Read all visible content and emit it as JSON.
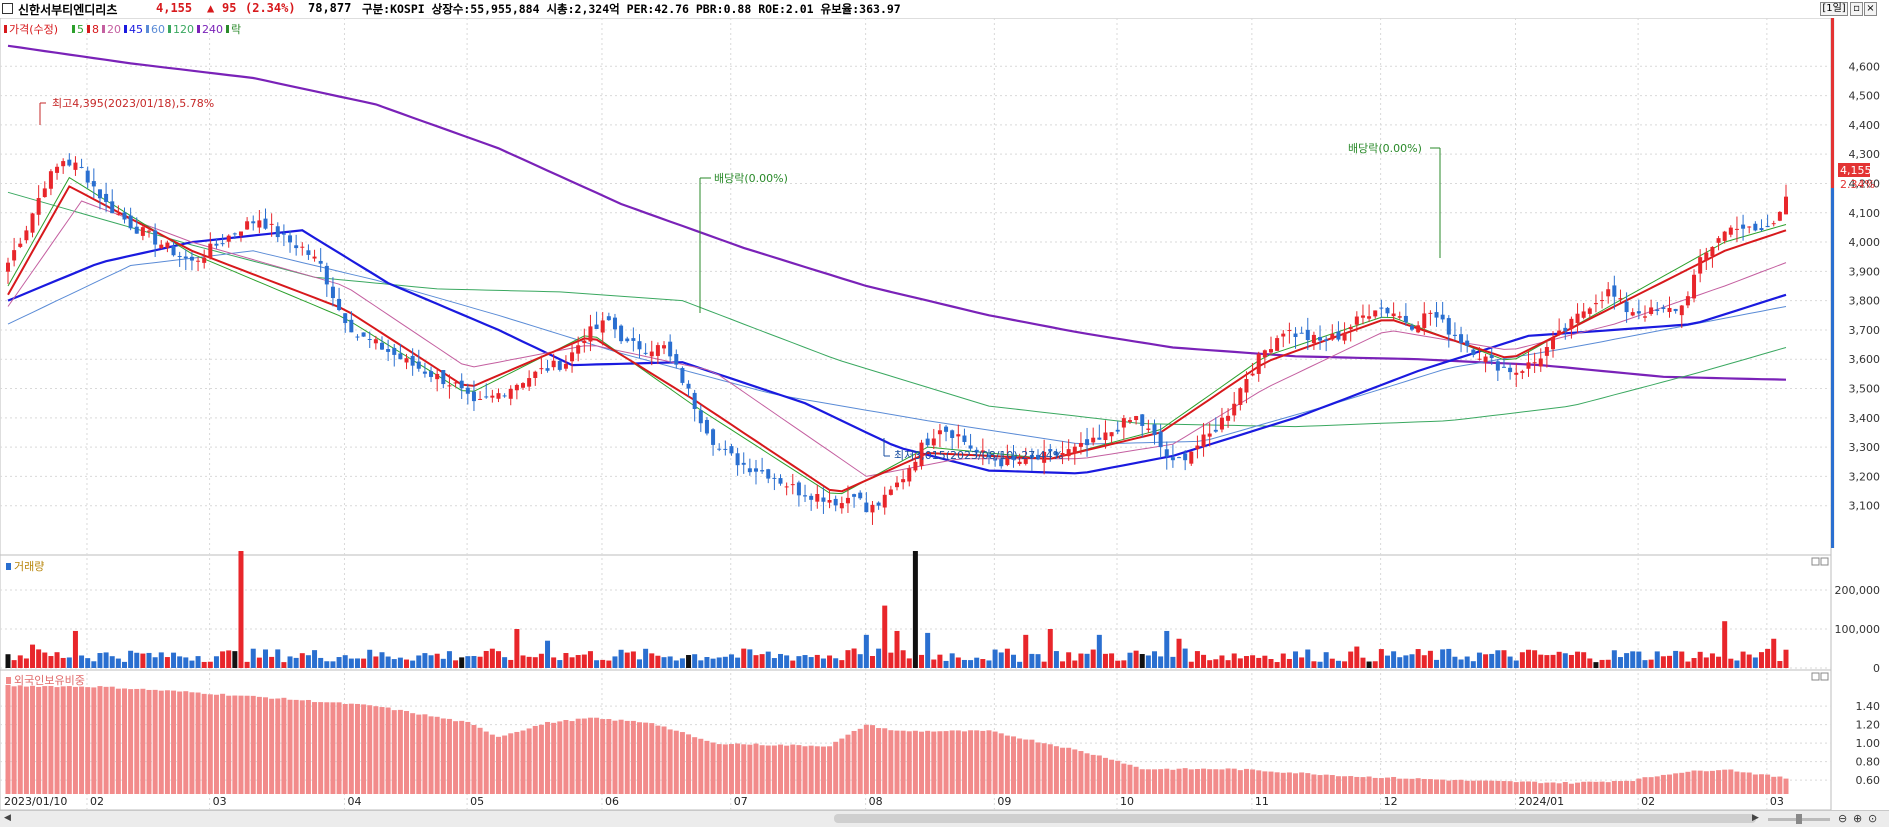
{
  "header": {
    "name": "신한서부티엔디리츠",
    "price": "4,155",
    "change_arrow": "▲",
    "change": "95",
    "change_pct": "(2.34%)",
    "volume": "78,877",
    "info": "구분:KOSPI 상장수:55,955,884 시총:2,324억 PER:42.76 PBR:0.88 ROE:2.01 유보율:363.97",
    "period_button": "[1일]"
  },
  "legend": {
    "items": [
      {
        "label": "가격(수정)",
        "color": "#d7191c"
      },
      {
        "label": "5",
        "color": "#2ca02c"
      },
      {
        "label": "8",
        "color": "#d7191c"
      },
      {
        "label": "20",
        "color": "#c45fa0"
      },
      {
        "label": "45",
        "color": "#1a1adf"
      },
      {
        "label": "60",
        "color": "#5a8bd6"
      },
      {
        "label": "120",
        "color": "#3aa860"
      },
      {
        "label": "240",
        "color": "#7a22b8"
      },
      {
        "label": "락",
        "color": "#2a8a2a"
      }
    ]
  },
  "annotations": {
    "high": "최고4,395(2023/01/18),5.78%",
    "low": "최저3,015(2023/08/10),27.44%",
    "dividend1": "배당락(0.00%)",
    "dividend2": "배당락(0.00%)"
  },
  "price_badge": {
    "price": "4,155",
    "pct": "2.34%"
  },
  "panel_titles": {
    "volume": "거래량",
    "foreign": "외국인보유비중"
  },
  "colors": {
    "up": "#e8262b",
    "down": "#2a6fd0",
    "grid": "#d9d9d9",
    "foreign_bar": "#f28b8b"
  },
  "chart_data": [
    {
      "type": "candlestick",
      "title": "가격(수정)",
      "y_ticks": [
        3100,
        3200,
        3300,
        3400,
        3500,
        3600,
        3700,
        3800,
        3900,
        4000,
        4100,
        4200,
        4300,
        4400,
        4500,
        4600
      ],
      "ylim": [
        3000,
        4700
      ],
      "x_tick_labels": [
        "2023/01/10",
        "02",
        "03",
        "04",
        "05",
        "06",
        "07",
        "08",
        "09",
        "10",
        "11",
        "12",
        "2024/01",
        "02",
        "03"
      ],
      "close_keypoints": [
        [
          0,
          3930
        ],
        [
          3,
          4050
        ],
        [
          6,
          4200
        ],
        [
          9,
          4280
        ],
        [
          12,
          4250
        ],
        [
          16,
          4130
        ],
        [
          20,
          4060
        ],
        [
          26,
          3980
        ],
        [
          30,
          3930
        ],
        [
          34,
          3990
        ],
        [
          38,
          4050
        ],
        [
          41,
          4080
        ],
        [
          45,
          4010
        ],
        [
          48,
          3980
        ],
        [
          51,
          3920
        ],
        [
          54,
          3770
        ],
        [
          57,
          3680
        ],
        [
          61,
          3640
        ],
        [
          65,
          3590
        ],
        [
          69,
          3550
        ],
        [
          73,
          3510
        ],
        [
          76,
          3440
        ],
        [
          79,
          3470
        ],
        [
          84,
          3530
        ],
        [
          88,
          3570
        ],
        [
          91,
          3590
        ],
        [
          94,
          3680
        ],
        [
          98,
          3730
        ],
        [
          101,
          3650
        ],
        [
          104,
          3640
        ],
        [
          107,
          3640
        ],
        [
          110,
          3530
        ],
        [
          113,
          3400
        ],
        [
          116,
          3290
        ],
        [
          120,
          3240
        ],
        [
          124,
          3210
        ],
        [
          129,
          3150
        ],
        [
          133,
          3130
        ],
        [
          136,
          3110
        ],
        [
          138,
          3150
        ],
        [
          140,
          3080
        ],
        [
          143,
          3120
        ],
        [
          146,
          3200
        ],
        [
          149,
          3300
        ],
        [
          152,
          3370
        ],
        [
          155,
          3340
        ],
        [
          158,
          3280
        ],
        [
          162,
          3250
        ],
        [
          166,
          3250
        ],
        [
          170,
          3270
        ],
        [
          174,
          3290
        ],
        [
          178,
          3320
        ],
        [
          181,
          3370
        ],
        [
          184,
          3400
        ],
        [
          187,
          3330
        ],
        [
          190,
          3240
        ],
        [
          193,
          3290
        ],
        [
          196,
          3340
        ],
        [
          199,
          3420
        ],
        [
          202,
          3540
        ],
        [
          205,
          3630
        ],
        [
          208,
          3700
        ],
        [
          211,
          3680
        ],
        [
          214,
          3660
        ],
        [
          217,
          3680
        ],
        [
          220,
          3730
        ],
        [
          223,
          3780
        ],
        [
          226,
          3760
        ],
        [
          229,
          3720
        ],
        [
          232,
          3760
        ],
        [
          235,
          3700
        ],
        [
          238,
          3650
        ],
        [
          241,
          3600
        ],
        [
          244,
          3570
        ],
        [
          246,
          3560
        ],
        [
          249,
          3590
        ],
        [
          252,
          3660
        ],
        [
          255,
          3720
        ],
        [
          258,
          3790
        ],
        [
          261,
          3830
        ],
        [
          264,
          3770
        ],
        [
          267,
          3760
        ],
        [
          270,
          3760
        ],
        [
          273,
          3780
        ],
        [
          276,
          3930
        ],
        [
          279,
          4020
        ],
        [
          282,
          4060
        ],
        [
          285,
          4030
        ],
        [
          288,
          4060
        ],
        [
          290,
          4155
        ]
      ],
      "ma5_keypoints": [
        [
          0,
          3850
        ],
        [
          10,
          4220
        ],
        [
          30,
          3960
        ],
        [
          55,
          3740
        ],
        [
          75,
          3480
        ],
        [
          95,
          3690
        ],
        [
          112,
          3440
        ],
        [
          135,
          3130
        ],
        [
          150,
          3300
        ],
        [
          170,
          3260
        ],
        [
          188,
          3360
        ],
        [
          205,
          3610
        ],
        [
          225,
          3750
        ],
        [
          245,
          3590
        ],
        [
          262,
          3790
        ],
        [
          280,
          4000
        ],
        [
          290,
          4060
        ]
      ],
      "ma8_keypoints": [
        [
          0,
          3820
        ],
        [
          10,
          4190
        ],
        [
          30,
          3970
        ],
        [
          55,
          3770
        ],
        [
          75,
          3500
        ],
        [
          95,
          3680
        ],
        [
          112,
          3460
        ],
        [
          135,
          3140
        ],
        [
          150,
          3280
        ],
        [
          170,
          3260
        ],
        [
          188,
          3350
        ],
        [
          205,
          3590
        ],
        [
          225,
          3740
        ],
        [
          245,
          3600
        ],
        [
          262,
          3780
        ],
        [
          280,
          3970
        ],
        [
          290,
          4040
        ]
      ],
      "ma20_keypoints": [
        [
          0,
          3780
        ],
        [
          12,
          4140
        ],
        [
          30,
          4000
        ],
        [
          55,
          3850
        ],
        [
          75,
          3570
        ],
        [
          95,
          3650
        ],
        [
          115,
          3560
        ],
        [
          140,
          3200
        ],
        [
          155,
          3260
        ],
        [
          175,
          3260
        ],
        [
          190,
          3310
        ],
        [
          205,
          3500
        ],
        [
          225,
          3700
        ],
        [
          245,
          3630
        ],
        [
          262,
          3720
        ],
        [
          280,
          3850
        ],
        [
          290,
          3930
        ]
      ],
      "ma45_keypoints": [
        [
          0,
          3800
        ],
        [
          15,
          3930
        ],
        [
          30,
          4000
        ],
        [
          48,
          4040
        ],
        [
          62,
          3860
        ],
        [
          80,
          3700
        ],
        [
          92,
          3580
        ],
        [
          110,
          3590
        ],
        [
          130,
          3450
        ],
        [
          145,
          3300
        ],
        [
          160,
          3220
        ],
        [
          175,
          3210
        ],
        [
          190,
          3270
        ],
        [
          210,
          3400
        ],
        [
          230,
          3560
        ],
        [
          248,
          3680
        ],
        [
          262,
          3700
        ],
        [
          275,
          3720
        ],
        [
          290,
          3820
        ]
      ],
      "ma60_keypoints": [
        [
          0,
          3720
        ],
        [
          20,
          3920
        ],
        [
          40,
          3970
        ],
        [
          60,
          3870
        ],
        [
          80,
          3750
        ],
        [
          100,
          3620
        ],
        [
          125,
          3480
        ],
        [
          150,
          3390
        ],
        [
          175,
          3310
        ],
        [
          195,
          3320
        ],
        [
          215,
          3440
        ],
        [
          235,
          3570
        ],
        [
          255,
          3640
        ],
        [
          275,
          3720
        ],
        [
          290,
          3780
        ]
      ],
      "ma120_keypoints": [
        [
          0,
          4170
        ],
        [
          15,
          4080
        ],
        [
          30,
          3990
        ],
        [
          50,
          3880
        ],
        [
          70,
          3840
        ],
        [
          90,
          3830
        ],
        [
          110,
          3800
        ],
        [
          135,
          3600
        ],
        [
          160,
          3440
        ],
        [
          185,
          3380
        ],
        [
          210,
          3370
        ],
        [
          235,
          3390
        ],
        [
          255,
          3440
        ],
        [
          275,
          3550
        ],
        [
          290,
          3640
        ]
      ],
      "ma240_keypoints": [
        [
          0,
          4670
        ],
        [
          20,
          4610
        ],
        [
          40,
          4560
        ],
        [
          60,
          4470
        ],
        [
          80,
          4320
        ],
        [
          100,
          4130
        ],
        [
          120,
          3980
        ],
        [
          140,
          3850
        ],
        [
          160,
          3750
        ],
        [
          175,
          3690
        ],
        [
          190,
          3640
        ],
        [
          210,
          3610
        ],
        [
          230,
          3600
        ],
        [
          250,
          3580
        ],
        [
          270,
          3540
        ],
        [
          290,
          3530
        ]
      ]
    },
    {
      "type": "bar",
      "title": "거래량",
      "y_ticks": [
        0,
        100000,
        200000
      ],
      "y_tick_labels": [
        "0",
        "100,000",
        "200,000"
      ],
      "ylim": [
        0,
        300000
      ]
    },
    {
      "type": "bar",
      "title": "외국인보유비중",
      "y_ticks": [
        0.6,
        0.8,
        1.0,
        1.2,
        1.4
      ],
      "y_tick_labels": [
        "0.60",
        "0.80",
        "1.00",
        "1.20",
        "1.40"
      ],
      "ylim": [
        0.45,
        1.65
      ],
      "keypoints": [
        [
          0,
          1.62
        ],
        [
          15,
          1.61
        ],
        [
          30,
          1.55
        ],
        [
          45,
          1.48
        ],
        [
          60,
          1.4
        ],
        [
          75,
          1.22
        ],
        [
          80,
          1.07
        ],
        [
          88,
          1.22
        ],
        [
          95,
          1.27
        ],
        [
          105,
          1.22
        ],
        [
          115,
          1.0
        ],
        [
          125,
          0.98
        ],
        [
          134,
          0.97
        ],
        [
          140,
          1.2
        ],
        [
          145,
          1.13
        ],
        [
          160,
          1.13
        ],
        [
          172,
          0.96
        ],
        [
          180,
          0.83
        ],
        [
          185,
          0.72
        ],
        [
          200,
          0.72
        ],
        [
          220,
          0.64
        ],
        [
          240,
          0.59
        ],
        [
          255,
          0.57
        ],
        [
          265,
          0.6
        ],
        [
          272,
          0.68
        ],
        [
          280,
          0.72
        ],
        [
          290,
          0.62
        ]
      ]
    }
  ]
}
